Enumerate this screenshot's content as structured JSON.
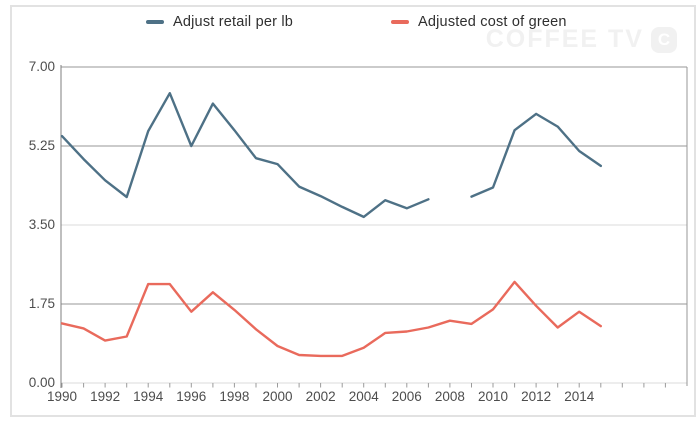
{
  "watermark": {
    "text": "COFFEE TV",
    "logo_letter": "C"
  },
  "legend": [
    {
      "label": "Adjust retail per lb",
      "color": "#4e7186"
    },
    {
      "label": "Adjusted cost of green",
      "color": "#e96a5c"
    }
  ],
  "chart_data": {
    "type": "line",
    "x": [
      1990,
      1991,
      1992,
      1993,
      1994,
      1995,
      1996,
      1997,
      1998,
      1999,
      2000,
      2001,
      2002,
      2003,
      2004,
      2005,
      2006,
      2007,
      2008,
      2009,
      2010,
      2011,
      2012,
      2013,
      2014,
      2015
    ],
    "series": [
      {
        "name": "Adjust retail per lb",
        "color": "#4e7186",
        "values": [
          5.47,
          4.96,
          4.49,
          4.12,
          5.58,
          6.42,
          5.25,
          6.19,
          5.6,
          4.98,
          4.85,
          4.35,
          4.14,
          3.9,
          3.68,
          4.05,
          3.87,
          4.07,
          null,
          4.13,
          4.33,
          5.6,
          5.96,
          5.68,
          5.14,
          4.81
        ]
      },
      {
        "name": "Adjusted cost of green",
        "color": "#e96a5c",
        "values": [
          1.32,
          1.21,
          0.94,
          1.03,
          2.19,
          2.19,
          1.58,
          2.01,
          1.62,
          1.19,
          0.82,
          0.62,
          0.6,
          0.6,
          0.78,
          1.11,
          1.14,
          1.23,
          1.38,
          1.31,
          1.63,
          2.24,
          1.71,
          1.23,
          1.58,
          1.26
        ]
      }
    ],
    "ylim": [
      0,
      7
    ],
    "y_ticks": [
      {
        "label": "0.00",
        "value": 0,
        "minor": true
      },
      {
        "label": "1.75",
        "value": 1.75,
        "minor": false
      },
      {
        "label": "3.50",
        "value": 3.5,
        "minor": true
      },
      {
        "label": "5.25",
        "value": 5.25,
        "minor": false
      },
      {
        "label": "7.00",
        "value": 7,
        "minor": false
      }
    ],
    "x_tick_labels": [
      "1990",
      "1992",
      "1994",
      "1996",
      "1998",
      "2000",
      "2002",
      "2004",
      "2006",
      "2008",
      "2010",
      "2012",
      "2014"
    ],
    "x_axis_tick_range": [
      1990,
      2018
    ],
    "missing_data_years": [
      2008
    ],
    "grid": "horizontal",
    "legend_position": "top"
  }
}
